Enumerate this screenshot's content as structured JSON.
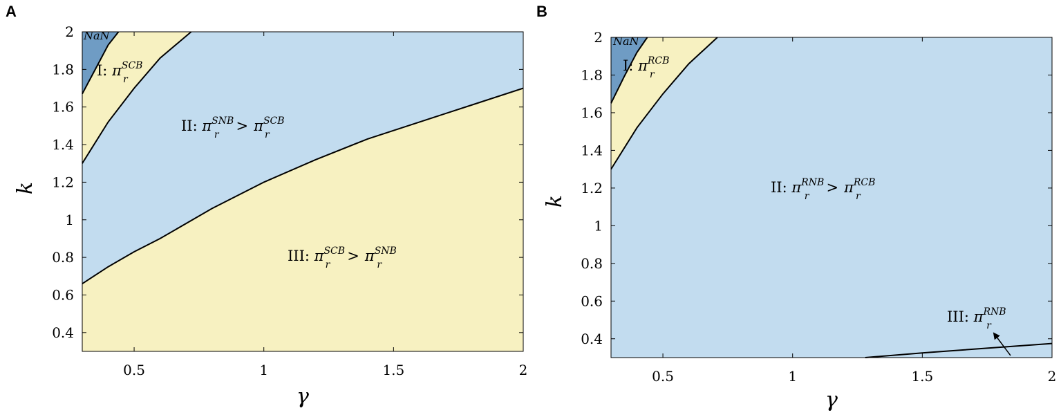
{
  "colors": {
    "nan_region": "#6f9cc4",
    "light_blue": "#c2dcef",
    "yellow": "#f7f1c1",
    "boundary": "#000000"
  },
  "chart_data": [
    {
      "panel": "A",
      "type": "area",
      "xlabel": "γ",
      "ylabel": "k",
      "xlim": [
        0.3,
        2
      ],
      "ylim": [
        0.3,
        2
      ],
      "xticks": [
        "0.5",
        "1",
        "1.5",
        "2"
      ],
      "yticks": [
        "0.4",
        "0.6",
        "0.8",
        "1",
        "1.2",
        "1.4",
        "1.6",
        "1.8",
        "2"
      ],
      "boundaries": {
        "nan_edge": {
          "x": [
            0.3,
            0.35,
            0.4,
            0.44
          ],
          "y": [
            1.67,
            1.8,
            1.93,
            2.0
          ]
        },
        "region_I_upper_edge": {
          "x": [
            0.3,
            0.4,
            0.5,
            0.6,
            0.72
          ],
          "y": [
            1.3,
            1.52,
            1.7,
            1.86,
            2.0
          ]
        },
        "region_II_lower_edge": {
          "x": [
            0.3,
            0.4,
            0.5,
            0.6,
            0.8,
            1.0,
            1.2,
            1.4,
            1.6,
            1.8,
            2.0
          ],
          "y": [
            0.66,
            0.75,
            0.83,
            0.9,
            1.06,
            1.2,
            1.32,
            1.43,
            1.52,
            1.61,
            1.7
          ]
        }
      },
      "regions": [
        {
          "id": "NaN",
          "label": "NaN"
        },
        {
          "id": "I",
          "prefix": "I:",
          "sym": "π",
          "sub": "r",
          "sup": "SCB"
        },
        {
          "id": "II",
          "prefix": "II:",
          "sym": "π",
          "sub": "r",
          "sup": "SNB",
          "op": ">",
          "sym2": "π",
          "sub2": "r",
          "sup2": "SCB"
        },
        {
          "id": "III",
          "prefix": "III:",
          "sym": "π",
          "sub": "r",
          "sup": "SCB",
          "op": ">",
          "sym2": "π",
          "sub2": "r",
          "sup2": "SNB"
        }
      ]
    },
    {
      "panel": "B",
      "type": "area",
      "xlabel": "γ",
      "ylabel": "k",
      "xlim": [
        0.3,
        2
      ],
      "ylim": [
        0.3,
        2
      ],
      "xticks": [
        "0.5",
        "1",
        "1.5",
        "2"
      ],
      "yticks": [
        "0.4",
        "0.6",
        "0.8",
        "1",
        "1.2",
        "1.4",
        "1.6",
        "1.8",
        "2"
      ],
      "boundaries": {
        "nan_edge": {
          "x": [
            0.3,
            0.35,
            0.4,
            0.44
          ],
          "y": [
            1.65,
            1.79,
            1.92,
            2.0
          ]
        },
        "region_I_upper_edge": {
          "x": [
            0.3,
            0.4,
            0.5,
            0.6,
            0.71
          ],
          "y": [
            1.3,
            1.52,
            1.7,
            1.86,
            2.0
          ]
        },
        "region_III_edge": {
          "x": [
            1.28,
            1.5,
            1.75,
            2.0
          ],
          "y": [
            0.3,
            0.325,
            0.35,
            0.375
          ]
        }
      },
      "regions": [
        {
          "id": "NaN",
          "label": "NaN"
        },
        {
          "id": "I",
          "prefix": "I:",
          "sym": "π",
          "sub": "r",
          "sup": "RCB"
        },
        {
          "id": "II",
          "prefix": "II:",
          "sym": "π",
          "sub": "r",
          "sup": "RNB",
          "op": ">",
          "sym2": "π",
          "sub2": "r",
          "sup2": "RCB"
        },
        {
          "id": "III",
          "prefix": "III:",
          "sym": "π",
          "sub": "r",
          "sup": "RNB"
        }
      ]
    }
  ]
}
